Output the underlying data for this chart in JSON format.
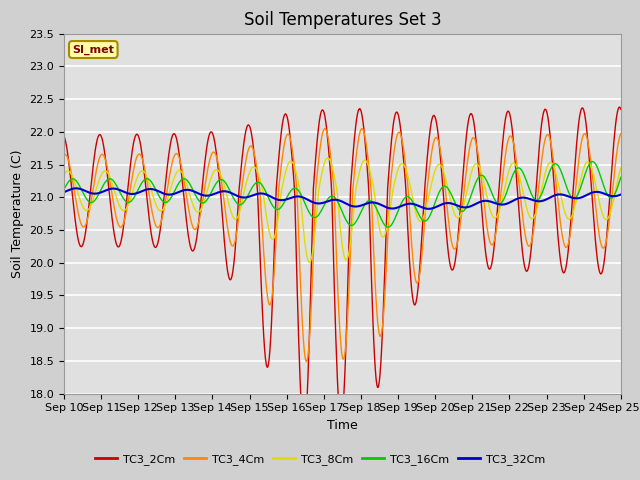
{
  "title": "Soil Temperatures Set 3",
  "xlabel": "Time",
  "ylabel": "Soil Temperature (C)",
  "ylim": [
    18.0,
    23.5
  ],
  "yticks": [
    18.0,
    18.5,
    19.0,
    19.5,
    20.0,
    20.5,
    21.0,
    21.5,
    22.0,
    22.5,
    23.0,
    23.5
  ],
  "xtick_labels": [
    "Sep 10",
    "Sep 11",
    "Sep 12",
    "Sep 13",
    "Sep 14",
    "Sep 15",
    "Sep 16",
    "Sep 17",
    "Sep 18",
    "Sep 19",
    "Sep 20",
    "Sep 21",
    "Sep 22",
    "Sep 23",
    "Sep 24",
    "Sep 25"
  ],
  "series": [
    {
      "label": "TC3_2Cm",
      "color": "#CC0000",
      "lw": 1.0
    },
    {
      "label": "TC3_4Cm",
      "color": "#FF8800",
      "lw": 1.0
    },
    {
      "label": "TC3_8Cm",
      "color": "#DDDD00",
      "lw": 1.0
    },
    {
      "label": "TC3_16Cm",
      "color": "#00CC00",
      "lw": 1.0
    },
    {
      "label": "TC3_32Cm",
      "color": "#0000CC",
      "lw": 1.5
    }
  ],
  "legend_label": "SI_met",
  "fig_bg": "#D0D0D0",
  "plot_bg": "#E0E0E0",
  "grid_color": "white",
  "title_fontsize": 12,
  "axis_label_fontsize": 9,
  "tick_fontsize": 8
}
